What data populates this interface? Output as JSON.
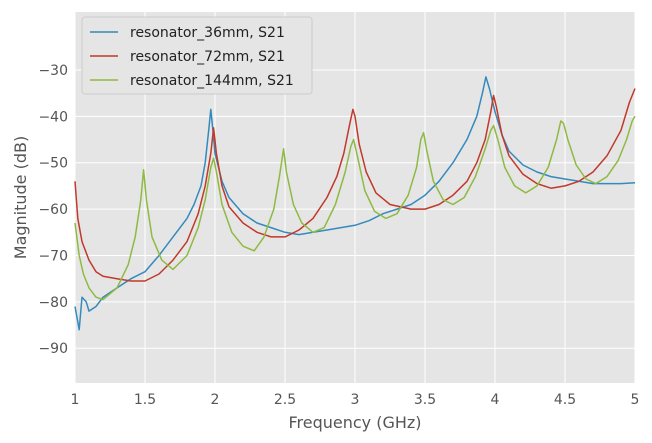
{
  "chart_data": {
    "type": "line",
    "title": "",
    "xlabel": "Frequency (GHz)",
    "ylabel": "Magnitude (dB)",
    "xlim": [
      1.0,
      5.0
    ],
    "ylim": [
      -97.5,
      -17.5
    ],
    "xticks": [
      1.0,
      1.5,
      2.0,
      2.5,
      3.0,
      3.5,
      4.0,
      4.5,
      5.0
    ],
    "xtick_labels": [
      "1",
      "1.5",
      "2",
      "2.5",
      "3",
      "3.5",
      "4",
      "4.5",
      "5"
    ],
    "yticks": [
      -90,
      -80,
      -70,
      -60,
      -50,
      -40,
      -30
    ],
    "ytick_labels": [
      "−90",
      "−80",
      "−70",
      "−60",
      "−50",
      "−40",
      "−30"
    ],
    "grid": true,
    "legend_position": "top-left",
    "series": [
      {
        "name": "resonator_36mm, S21",
        "color": "#348ABD",
        "points": [
          [
            1.0,
            -81
          ],
          [
            1.03,
            -86
          ],
          [
            1.05,
            -79
          ],
          [
            1.08,
            -80
          ],
          [
            1.1,
            -82
          ],
          [
            1.15,
            -81
          ],
          [
            1.2,
            -79
          ],
          [
            1.3,
            -77
          ],
          [
            1.4,
            -75
          ],
          [
            1.5,
            -73.5
          ],
          [
            1.6,
            -70
          ],
          [
            1.7,
            -66
          ],
          [
            1.8,
            -62
          ],
          [
            1.85,
            -59
          ],
          [
            1.9,
            -55
          ],
          [
            1.93,
            -50
          ],
          [
            1.955,
            -43
          ],
          [
            1.97,
            -38.5
          ],
          [
            1.985,
            -43
          ],
          [
            2.0,
            -48
          ],
          [
            2.05,
            -54
          ],
          [
            2.1,
            -57.5
          ],
          [
            2.2,
            -61
          ],
          [
            2.3,
            -63
          ],
          [
            2.4,
            -64
          ],
          [
            2.5,
            -65
          ],
          [
            2.6,
            -65.5
          ],
          [
            2.7,
            -65
          ],
          [
            2.8,
            -64.5
          ],
          [
            2.9,
            -64
          ],
          [
            3.0,
            -63.5
          ],
          [
            3.1,
            -62.5
          ],
          [
            3.2,
            -61
          ],
          [
            3.3,
            -60
          ],
          [
            3.4,
            -59
          ],
          [
            3.5,
            -57
          ],
          [
            3.6,
            -54
          ],
          [
            3.7,
            -50
          ],
          [
            3.8,
            -45
          ],
          [
            3.87,
            -40
          ],
          [
            3.91,
            -35
          ],
          [
            3.935,
            -31.5
          ],
          [
            3.96,
            -34
          ],
          [
            4.0,
            -39
          ],
          [
            4.05,
            -44
          ],
          [
            4.1,
            -47.5
          ],
          [
            4.2,
            -50.5
          ],
          [
            4.3,
            -52
          ],
          [
            4.4,
            -53
          ],
          [
            4.5,
            -53.5
          ],
          [
            4.6,
            -54
          ],
          [
            4.7,
            -54.5
          ],
          [
            4.8,
            -54.5
          ],
          [
            4.9,
            -54.5
          ],
          [
            5.0,
            -54.3
          ]
        ]
      },
      {
        "name": "resonator_72mm, S21",
        "color": "#C0392B",
        "points": [
          [
            1.0,
            -54
          ],
          [
            1.02,
            -62
          ],
          [
            1.05,
            -67
          ],
          [
            1.1,
            -71
          ],
          [
            1.15,
            -73.5
          ],
          [
            1.2,
            -74.5
          ],
          [
            1.3,
            -75
          ],
          [
            1.4,
            -75.5
          ],
          [
            1.5,
            -75.5
          ],
          [
            1.6,
            -74
          ],
          [
            1.7,
            -71
          ],
          [
            1.8,
            -67
          ],
          [
            1.88,
            -61
          ],
          [
            1.93,
            -55
          ],
          [
            1.97,
            -48
          ],
          [
            1.99,
            -42.5
          ],
          [
            2.01,
            -48
          ],
          [
            2.05,
            -55
          ],
          [
            2.1,
            -59.5
          ],
          [
            2.2,
            -63
          ],
          [
            2.3,
            -65
          ],
          [
            2.4,
            -66
          ],
          [
            2.5,
            -66
          ],
          [
            2.6,
            -64.5
          ],
          [
            2.7,
            -62
          ],
          [
            2.8,
            -57.5
          ],
          [
            2.87,
            -53
          ],
          [
            2.92,
            -48
          ],
          [
            2.96,
            -42
          ],
          [
            2.985,
            -38.5
          ],
          [
            3.0,
            -40
          ],
          [
            3.03,
            -46
          ],
          [
            3.08,
            -52
          ],
          [
            3.15,
            -56.5
          ],
          [
            3.25,
            -59
          ],
          [
            3.4,
            -60
          ],
          [
            3.5,
            -60
          ],
          [
            3.6,
            -59
          ],
          [
            3.7,
            -57
          ],
          [
            3.8,
            -54
          ],
          [
            3.87,
            -50
          ],
          [
            3.93,
            -45
          ],
          [
            3.97,
            -39
          ],
          [
            3.99,
            -35.5
          ],
          [
            4.01,
            -38
          ],
          [
            4.05,
            -44
          ],
          [
            4.1,
            -48.5
          ],
          [
            4.2,
            -52.5
          ],
          [
            4.3,
            -54.5
          ],
          [
            4.4,
            -55.5
          ],
          [
            4.5,
            -55
          ],
          [
            4.6,
            -54
          ],
          [
            4.7,
            -52
          ],
          [
            4.8,
            -48.5
          ],
          [
            4.9,
            -43
          ],
          [
            4.96,
            -37
          ],
          [
            5.0,
            -34
          ]
        ]
      },
      {
        "name": "resonator_144mm, S21",
        "color": "#8EBA42",
        "points": [
          [
            1.0,
            -63
          ],
          [
            1.03,
            -70
          ],
          [
            1.06,
            -74
          ],
          [
            1.1,
            -77
          ],
          [
            1.15,
            -79
          ],
          [
            1.2,
            -79.5
          ],
          [
            1.3,
            -77
          ],
          [
            1.38,
            -72
          ],
          [
            1.43,
            -66
          ],
          [
            1.47,
            -58
          ],
          [
            1.49,
            -51.5
          ],
          [
            1.51,
            -58
          ],
          [
            1.55,
            -66
          ],
          [
            1.62,
            -71
          ],
          [
            1.7,
            -73
          ],
          [
            1.8,
            -70
          ],
          [
            1.88,
            -64
          ],
          [
            1.93,
            -58
          ],
          [
            1.97,
            -51
          ],
          [
            1.99,
            -49
          ],
          [
            2.01,
            -52
          ],
          [
            2.05,
            -59
          ],
          [
            2.12,
            -65
          ],
          [
            2.2,
            -68
          ],
          [
            2.28,
            -69
          ],
          [
            2.35,
            -66
          ],
          [
            2.42,
            -60
          ],
          [
            2.46,
            -53
          ],
          [
            2.49,
            -47
          ],
          [
            2.51,
            -52
          ],
          [
            2.56,
            -59
          ],
          [
            2.62,
            -63
          ],
          [
            2.7,
            -65
          ],
          [
            2.78,
            -64
          ],
          [
            2.86,
            -59
          ],
          [
            2.93,
            -52
          ],
          [
            2.97,
            -46.5
          ],
          [
            2.99,
            -45
          ],
          [
            3.02,
            -49
          ],
          [
            3.07,
            -56
          ],
          [
            3.14,
            -60.5
          ],
          [
            3.22,
            -62
          ],
          [
            3.3,
            -61
          ],
          [
            3.38,
            -57
          ],
          [
            3.44,
            -51
          ],
          [
            3.47,
            -45
          ],
          [
            3.49,
            -43.5
          ],
          [
            3.51,
            -47
          ],
          [
            3.56,
            -54
          ],
          [
            3.63,
            -58
          ],
          [
            3.7,
            -59
          ],
          [
            3.78,
            -57.5
          ],
          [
            3.86,
            -53
          ],
          [
            3.93,
            -47
          ],
          [
            3.97,
            -43
          ],
          [
            3.99,
            -42
          ],
          [
            4.02,
            -45
          ],
          [
            4.07,
            -51
          ],
          [
            4.14,
            -55
          ],
          [
            4.22,
            -56.5
          ],
          [
            4.3,
            -55
          ],
          [
            4.38,
            -51
          ],
          [
            4.44,
            -45
          ],
          [
            4.47,
            -41
          ],
          [
            4.49,
            -41.5
          ],
          [
            4.52,
            -45
          ],
          [
            4.58,
            -50.5
          ],
          [
            4.65,
            -53.5
          ],
          [
            4.72,
            -54.5
          ],
          [
            4.8,
            -53
          ],
          [
            4.88,
            -49.5
          ],
          [
            4.94,
            -45
          ],
          [
            4.98,
            -41
          ],
          [
            5.0,
            -40
          ]
        ]
      }
    ]
  }
}
